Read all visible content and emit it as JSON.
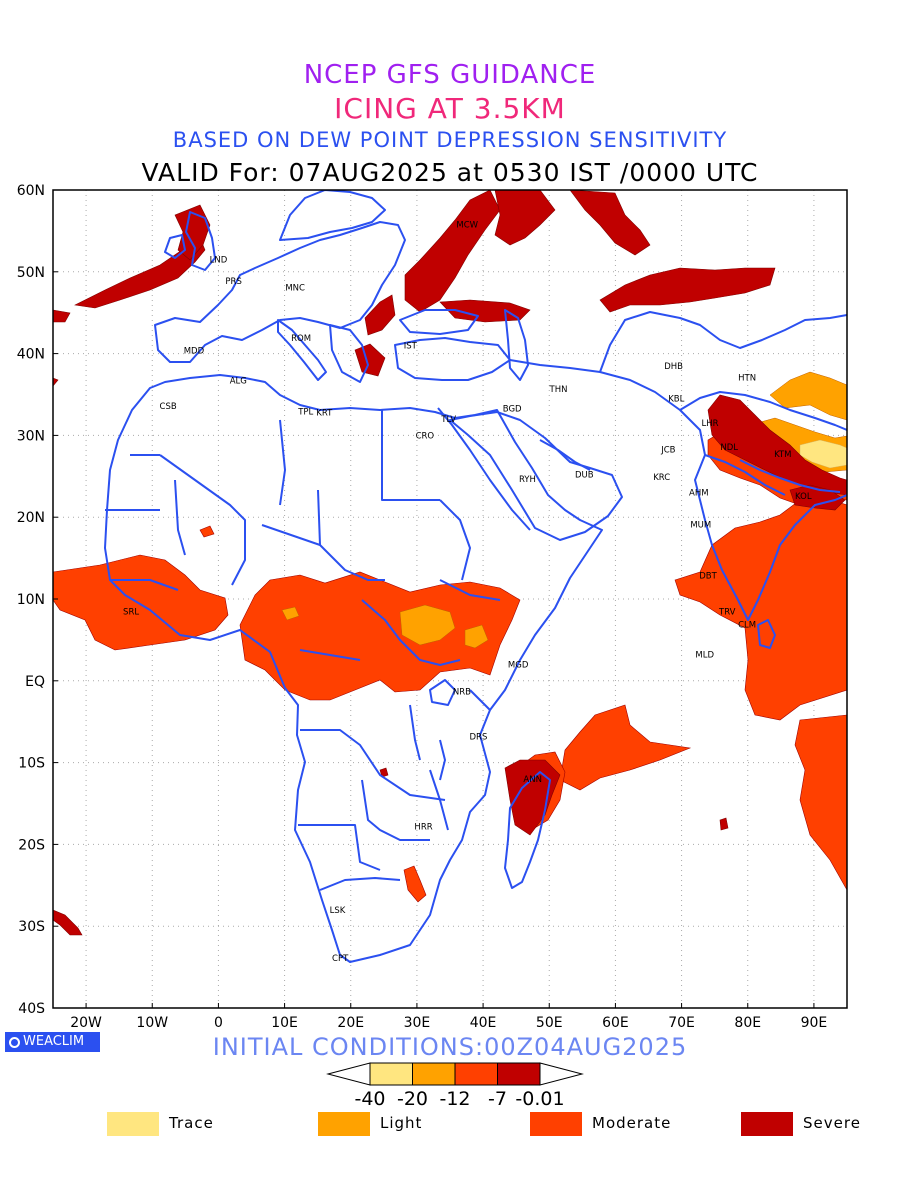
{
  "titles": {
    "line1": "NCEP GFS GUIDANCE",
    "line2": "ICING AT 3.5KM",
    "line3": "BASED ON DEW POINT DEPRESSION SENSITIVITY",
    "line4": "VALID For: 07AUG2025 at 0530 IST /0000 UTC"
  },
  "axes": {
    "lat_labels": [
      "60N",
      "50N",
      "40N",
      "30N",
      "20N",
      "10N",
      "EQ",
      "10S",
      "20S",
      "30S",
      "40S"
    ],
    "lon_labels": [
      "20W",
      "10W",
      "0",
      "10E",
      "20E",
      "30E",
      "40E",
      "50E",
      "60E",
      "70E",
      "80E",
      "90E"
    ],
    "lat_range": [
      -40,
      60
    ],
    "lon_range": [
      -25,
      95
    ],
    "grid": "dotted"
  },
  "cities": [
    {
      "name": "LND",
      "lon": 0,
      "lat": 51.5
    },
    {
      "name": "PRS",
      "lon": 2.3,
      "lat": 48.9
    },
    {
      "name": "MNC",
      "lon": 11.6,
      "lat": 48.1
    },
    {
      "name": "MCW",
      "lon": 37.6,
      "lat": 55.8
    },
    {
      "name": "MDD",
      "lon": -3.7,
      "lat": 40.4
    },
    {
      "name": "ROM",
      "lon": 12.5,
      "lat": 41.9
    },
    {
      "name": "IST",
      "lon": 29,
      "lat": 41
    },
    {
      "name": "ALG",
      "lon": 3,
      "lat": 36.7
    },
    {
      "name": "CSB",
      "lon": -7.6,
      "lat": 33.6
    },
    {
      "name": "TPL",
      "lon": 13.2,
      "lat": 32.9
    },
    {
      "name": "KRT",
      "lon": 16,
      "lat": 32.8
    },
    {
      "name": "CRO",
      "lon": 31.2,
      "lat": 30
    },
    {
      "name": "TLV",
      "lon": 34.8,
      "lat": 32
    },
    {
      "name": "BGD",
      "lon": 44.4,
      "lat": 33.3
    },
    {
      "name": "THN",
      "lon": 51.4,
      "lat": 35.7
    },
    {
      "name": "DHB",
      "lon": 68.8,
      "lat": 38.5
    },
    {
      "name": "KBL",
      "lon": 69.2,
      "lat": 34.5
    },
    {
      "name": "HTN",
      "lon": 79.9,
      "lat": 37.1
    },
    {
      "name": "LHR",
      "lon": 74.3,
      "lat": 31.5
    },
    {
      "name": "NDL",
      "lon": 77.2,
      "lat": 28.6
    },
    {
      "name": "KTM",
      "lon": 85.3,
      "lat": 27.7
    },
    {
      "name": "JCB",
      "lon": 68,
      "lat": 28.3
    },
    {
      "name": "RYH",
      "lon": 46.7,
      "lat": 24.7
    },
    {
      "name": "DUB",
      "lon": 55.3,
      "lat": 25.2
    },
    {
      "name": "KRC",
      "lon": 67,
      "lat": 24.9
    },
    {
      "name": "AHM",
      "lon": 72.6,
      "lat": 23
    },
    {
      "name": "KOL",
      "lon": 88.4,
      "lat": 22.6
    },
    {
      "name": "MUM",
      "lon": 72.9,
      "lat": 19.1
    },
    {
      "name": "SRL",
      "lon": -13.2,
      "lat": 8.5
    },
    {
      "name": "DBT",
      "lon": 74,
      "lat": 12.9
    },
    {
      "name": "TRV",
      "lon": 76.9,
      "lat": 8.5
    },
    {
      "name": "CLM",
      "lon": 79.9,
      "lat": 6.9
    },
    {
      "name": "MGD",
      "lon": 45.3,
      "lat": 2
    },
    {
      "name": "MLD",
      "lon": 73.5,
      "lat": 3.2
    },
    {
      "name": "NRB",
      "lon": 36.8,
      "lat": -1.3
    },
    {
      "name": "DRS",
      "lon": 39.3,
      "lat": -6.8
    },
    {
      "name": "ANN",
      "lon": 47.5,
      "lat": -12
    },
    {
      "name": "HRR",
      "lon": 31,
      "lat": -17.8
    },
    {
      "name": "LSK",
      "lon": 18,
      "lat": -28
    },
    {
      "name": "CPT",
      "lon": 18.4,
      "lat": -33.9
    }
  ],
  "initial_conditions": "INITIAL CONDITIONS:00Z04AUG2025",
  "logo_text": "WEACLIM",
  "colorbar": {
    "labels": [
      "-40",
      "-20",
      "-12",
      "-7",
      "-0.01"
    ],
    "colors": [
      "#ffe680",
      "#ffa200",
      "#ff4000",
      "#c00000"
    ]
  },
  "legend": [
    {
      "label": "Trace",
      "color": "#ffe680"
    },
    {
      "label": "Light",
      "color": "#ffa200"
    },
    {
      "label": "Moderate",
      "color": "#ff4000"
    },
    {
      "label": "Severe",
      "color": "#c00000"
    }
  ],
  "colors": {
    "boundaries": "#2b50f0",
    "severe": "#c00000",
    "moderate": "#ff4000",
    "light": "#ffa200",
    "trace": "#ffe680"
  }
}
